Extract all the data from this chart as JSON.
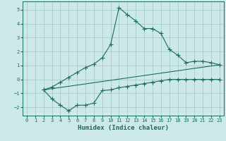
{
  "bg_color": "#cce8e8",
  "grid_color": "#aacccc",
  "line_color": "#1a6b60",
  "xlabel": "Humidex (Indice chaleur)",
  "xlim": [
    -0.5,
    23.5
  ],
  "ylim": [
    -2.6,
    5.6
  ],
  "yticks": [
    -2,
    -1,
    0,
    1,
    2,
    3,
    4,
    5
  ],
  "xticks": [
    0,
    1,
    2,
    3,
    4,
    5,
    6,
    7,
    8,
    9,
    10,
    11,
    12,
    13,
    14,
    15,
    16,
    17,
    18,
    19,
    20,
    21,
    22,
    23
  ],
  "curve1_x": [
    2,
    3,
    4,
    5,
    6,
    7,
    8,
    9,
    10,
    11,
    12,
    13,
    14,
    15,
    16,
    17,
    18,
    19,
    20,
    21,
    22,
    23
  ],
  "curve1_y": [
    -0.75,
    -0.55,
    -0.2,
    0.15,
    0.5,
    0.85,
    1.1,
    1.55,
    2.5,
    5.15,
    4.65,
    4.2,
    3.65,
    3.65,
    3.3,
    2.15,
    1.75,
    1.2,
    1.3,
    1.3,
    1.2,
    1.05
  ],
  "curve2_x": [
    2,
    3,
    4,
    5,
    6,
    7,
    8,
    9,
    10,
    11,
    12,
    13,
    14,
    15,
    16,
    17,
    18,
    19,
    20,
    21,
    22,
    23
  ],
  "curve2_y": [
    -0.75,
    -1.4,
    -1.85,
    -2.25,
    -1.85,
    -1.85,
    -1.7,
    -0.8,
    -0.75,
    -0.6,
    -0.5,
    -0.4,
    -0.3,
    -0.2,
    -0.1,
    0.0,
    0.0,
    0.0,
    0.0,
    0.0,
    0.0,
    0.0
  ],
  "line3_x": [
    2,
    23
  ],
  "line3_y": [
    -0.75,
    1.05
  ]
}
